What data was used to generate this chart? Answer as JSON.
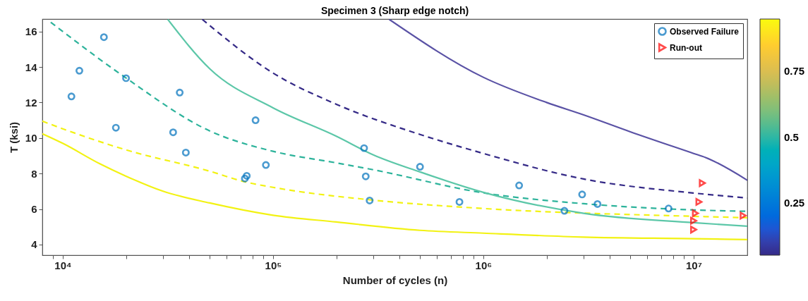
{
  "chart_data": {
    "type": "line",
    "title": "Specimen 3 (Sharp edge notch)",
    "xlabel": "Number of cycles (n)",
    "ylabel": "T (ksi)",
    "log": "x",
    "xlim": [
      8000,
      18000000
    ],
    "ylim": [
      3.4,
      16.7
    ],
    "xticks": [
      {
        "value": 9000,
        "label": null
      },
      {
        "value": 10000,
        "label": "10⁴"
      },
      {
        "value": 20000,
        "label": null
      },
      {
        "value": 30000,
        "label": null
      },
      {
        "value": 40000,
        "label": null
      },
      {
        "value": 50000,
        "label": null
      },
      {
        "value": 60000,
        "label": null
      },
      {
        "value": 70000,
        "label": null
      },
      {
        "value": 80000,
        "label": null
      },
      {
        "value": 90000,
        "label": null
      },
      {
        "value": 100000,
        "label": "10⁵"
      },
      {
        "value": 200000,
        "label": null
      },
      {
        "value": 300000,
        "label": null
      },
      {
        "value": 400000,
        "label": null
      },
      {
        "value": 500000,
        "label": null
      },
      {
        "value": 600000,
        "label": null
      },
      {
        "value": 700000,
        "label": null
      },
      {
        "value": 800000,
        "label": null
      },
      {
        "value": 900000,
        "label": null
      },
      {
        "value": 1000000,
        "label": "10⁶"
      },
      {
        "value": 2000000,
        "label": null
      },
      {
        "value": 3000000,
        "label": null
      },
      {
        "value": 4000000,
        "label": null
      },
      {
        "value": 5000000,
        "label": null
      },
      {
        "value": 6000000,
        "label": null
      },
      {
        "value": 7000000,
        "label": null
      },
      {
        "value": 8000000,
        "label": null
      },
      {
        "value": 9000000,
        "label": null
      },
      {
        "value": 10000000,
        "label": "10⁷"
      }
    ],
    "yticks": [
      4,
      6,
      8,
      10,
      12,
      14,
      16
    ],
    "grid": false,
    "legend": "top right",
    "clim": [
      0.05,
      0.95
    ],
    "cticks": [
      0.25,
      0.5,
      0.75
    ],
    "series": [
      {
        "type": "line",
        "line_style": "solid",
        "color": "#f2f213",
        "x": [
          8000,
          10000,
          15000,
          20000,
          30000,
          50000,
          100000,
          200000,
          500000,
          1000000,
          3000000,
          10000000,
          18000000
        ],
        "values": [
          10.24,
          9.7,
          8.55,
          7.85,
          7.0,
          6.34,
          5.65,
          5.27,
          4.8,
          4.64,
          4.42,
          4.33,
          4.28
        ]
      },
      {
        "type": "line",
        "line_style": "dashed",
        "color": "#f2f213",
        "x": [
          8000,
          10000,
          20000,
          50000,
          73000,
          100000,
          300000,
          1000000,
          10000000,
          18000000
        ],
        "values": [
          10.95,
          10.52,
          9.33,
          8.13,
          7.54,
          7.22,
          6.5,
          6.03,
          5.59,
          5.51
        ]
      },
      {
        "type": "line",
        "line_style": "dashed",
        "color": "#2db39b",
        "x": [
          8770,
          10000,
          20000,
          50000,
          100000,
          200000,
          300000,
          1000000,
          3000000,
          10000000,
          18000000
        ],
        "values": [
          16.52,
          16.0,
          13.38,
          10.4,
          9.25,
          8.6,
          8.21,
          6.91,
          6.3,
          5.95,
          5.87
        ]
      },
      {
        "type": "line",
        "line_style": "solid",
        "color": "#5cc7a8",
        "x": [
          31600,
          50000,
          100000,
          200000,
          300000,
          500000,
          1000000,
          3000000,
          10000000,
          18000000
        ],
        "values": [
          16.68,
          13.9,
          11.7,
          10.1,
          9.05,
          8.09,
          6.94,
          5.76,
          5.23,
          5.03
        ]
      },
      {
        "type": "line",
        "line_style": "dashed",
        "color": "#352a87",
        "x": [
          46100,
          100000,
          200000,
          500000,
          1000000,
          3000000,
          10000000,
          18000000
        ],
        "values": [
          16.68,
          13.66,
          11.9,
          10.2,
          9.13,
          7.69,
          6.9,
          6.62
        ]
      },
      {
        "type": "line",
        "line_style": "solid",
        "color": "#5a52a5",
        "x": [
          357000,
          1000000,
          2000000,
          3000000,
          5000000,
          10000000,
          11400000,
          18000000
        ],
        "values": [
          16.68,
          13.42,
          12.0,
          11.3,
          10.35,
          9.13,
          8.9,
          7.62
        ]
      },
      {
        "type": "scatter",
        "name": "Observed Failure",
        "marker": "circle",
        "color": "#0072bd",
        "x": [
          11000,
          12000,
          15700,
          17900,
          20000,
          33500,
          36000,
          38500,
          73500,
          75000,
          82600,
          92500,
          271000,
          276000,
          288000,
          500000,
          770000,
          1480000,
          2430000,
          2950000,
          3490000,
          7600000
        ],
        "values": [
          12.34,
          13.79,
          15.68,
          10.58,
          13.37,
          10.32,
          12.56,
          9.18,
          7.72,
          7.87,
          11.0,
          8.48,
          9.43,
          7.84,
          6.48,
          8.38,
          6.4,
          7.33,
          5.9,
          6.82,
          6.28,
          6.03
        ]
      },
      {
        "type": "scatter",
        "name": "Run-out",
        "marker": "triangle",
        "color": "#ff0000",
        "x": [
          11000000,
          10600000,
          10200000,
          10000000,
          10000000,
          17200000
        ],
        "values": [
          7.46,
          6.4,
          5.76,
          5.34,
          4.84,
          5.63
        ]
      }
    ]
  }
}
